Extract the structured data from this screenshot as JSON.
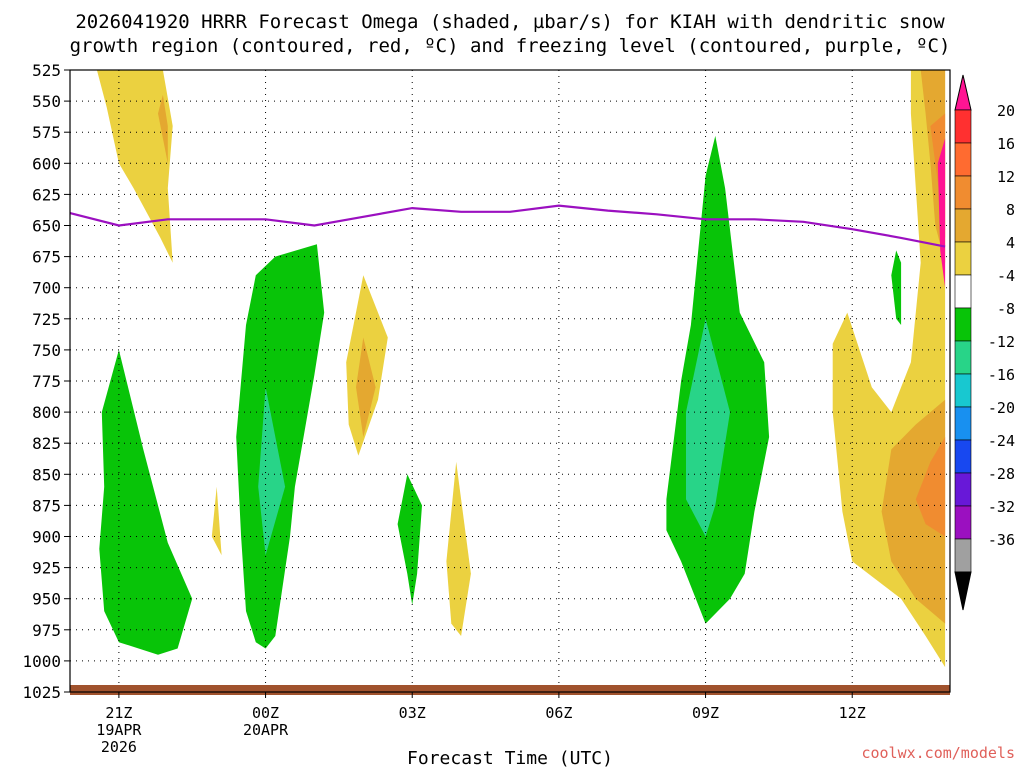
{
  "chart_data": {
    "type": "heatmap",
    "title_line1": "2026041920 HRRR Forecast Omega (shaded, µbar/s) for KIAH with dendritic snow",
    "title_line2": "growth region (contoured, red, ºC) and freezing level (contoured, purple, ºC)",
    "xlabel": "Forecast Time (UTC)",
    "ylabel": "",
    "y_ticks": [
      "525",
      "550",
      "575",
      "600",
      "625",
      "650",
      "675",
      "700",
      "725",
      "750",
      "775",
      "800",
      "825",
      "850",
      "875",
      "900",
      "925",
      "950",
      "975",
      "1000",
      "1025"
    ],
    "y_values": [
      525,
      550,
      575,
      600,
      625,
      650,
      675,
      700,
      725,
      750,
      775,
      800,
      825,
      850,
      875,
      900,
      925,
      950,
      975,
      1000,
      1025
    ],
    "ylim": [
      525,
      1025
    ],
    "xlim": [
      -1,
      17
    ],
    "x_ticks": [
      {
        "x": 0,
        "line1": "21Z",
        "line2": "19APR",
        "line3": "2026"
      },
      {
        "x": 3,
        "line1": "00Z",
        "line2": "20APR",
        "line3": ""
      },
      {
        "x": 6,
        "line1": "03Z",
        "line2": "",
        "line3": ""
      },
      {
        "x": 9,
        "line1": "06Z",
        "line2": "",
        "line3": ""
      },
      {
        "x": 12,
        "line1": "09Z",
        "line2": "",
        "line3": ""
      },
      {
        "x": 15,
        "line1": "12Z",
        "line2": "",
        "line3": ""
      }
    ],
    "colorbar": {
      "labels": [
        "20",
        "16",
        "12",
        "8",
        "4",
        "-4",
        "-8",
        "-12",
        "-16",
        "-20",
        "-24",
        "-28",
        "-32",
        "-36"
      ],
      "colors": [
        "#ff1493",
        "#ff3030",
        "#ff6b30",
        "#f08c30",
        "#e4a830",
        "#ebd140",
        "#ffffff",
        "#08c408",
        "#28d488",
        "#18c8d0",
        "#1890f0",
        "#1848f0",
        "#6818d8",
        "#9b10c0",
        "#a0a0a0",
        "#000000"
      ]
    },
    "freezing_level": {
      "name": "freezing level (0 ºC)",
      "color": "#9b10c0",
      "x": [
        -1,
        0,
        1,
        2,
        3,
        4,
        5,
        6,
        7,
        8,
        9,
        10,
        11,
        12,
        13,
        14,
        15,
        16,
        16.9
      ],
      "y": [
        640,
        650,
        645,
        645,
        645,
        650,
        643,
        636,
        639,
        639,
        634,
        638,
        641,
        645,
        645,
        647,
        653,
        660,
        667
      ]
    },
    "omega_regions": [
      {
        "name": "ascent-21z-lower",
        "level": -4,
        "color": "#08c408",
        "points": [
          [
            -0.4,
            910
          ],
          [
            -0.3,
            860
          ],
          [
            -0.35,
            800
          ],
          [
            0,
            750
          ],
          [
            0.5,
            830
          ],
          [
            1,
            905
          ],
          [
            1.5,
            950
          ],
          [
            1.2,
            990
          ],
          [
            0.8,
            995
          ],
          [
            0,
            985
          ],
          [
            -0.3,
            960
          ]
        ]
      },
      {
        "name": "ascent-00z-mid",
        "level": -4,
        "color": "#08c408",
        "points": [
          [
            2.5,
            900
          ],
          [
            2.4,
            820
          ],
          [
            2.6,
            730
          ],
          [
            2.8,
            690
          ],
          [
            3.2,
            675
          ],
          [
            4.05,
            665
          ],
          [
            4.2,
            720
          ],
          [
            4,
            770
          ],
          [
            3.6,
            860
          ],
          [
            3.5,
            900
          ],
          [
            3.2,
            980
          ],
          [
            3,
            990
          ],
          [
            2.8,
            985
          ],
          [
            2.6,
            960
          ]
        ]
      },
      {
        "name": "ascent-00z-core",
        "level": -8,
        "color": "#28d488",
        "points": [
          [
            2.85,
            860
          ],
          [
            3,
            780
          ],
          [
            3.4,
            860
          ],
          [
            3,
            915
          ]
        ]
      },
      {
        "name": "ascent-03z",
        "level": -4,
        "color": "#08c408",
        "points": [
          [
            5.7,
            890
          ],
          [
            5.9,
            850
          ],
          [
            6.2,
            875
          ],
          [
            6.1,
            930
          ],
          [
            6,
            955
          ],
          [
            5.9,
            930
          ]
        ]
      },
      {
        "name": "ascent-09z",
        "level": -4,
        "color": "#08c408",
        "points": [
          [
            11.2,
            870
          ],
          [
            11.5,
            775
          ],
          [
            11.7,
            730
          ],
          [
            12,
            610
          ],
          [
            12.2,
            578
          ],
          [
            12.4,
            620
          ],
          [
            12.7,
            720
          ],
          [
            13.2,
            760
          ],
          [
            13.3,
            820
          ],
          [
            13,
            880
          ],
          [
            12.8,
            930
          ],
          [
            12.5,
            950
          ],
          [
            12,
            970
          ],
          [
            11.8,
            950
          ],
          [
            11.5,
            920
          ],
          [
            11.2,
            895
          ]
        ]
      },
      {
        "name": "ascent-09z-core",
        "level": -8,
        "color": "#28d488",
        "points": [
          [
            11.6,
            800
          ],
          [
            12,
            725
          ],
          [
            12.5,
            800
          ],
          [
            12.2,
            875
          ],
          [
            12,
            900
          ],
          [
            11.6,
            870
          ]
        ]
      },
      {
        "name": "ascent-14z",
        "level": -4,
        "color": "#08c408",
        "points": [
          [
            15.8,
            690
          ],
          [
            15.9,
            670
          ],
          [
            16,
            680
          ],
          [
            16,
            730
          ],
          [
            15.9,
            725
          ]
        ]
      },
      {
        "name": "descent-21z-upper",
        "level": 4,
        "color": "#ebd140",
        "points": [
          [
            -0.45,
            525
          ],
          [
            0.9,
            525
          ],
          [
            1.1,
            570
          ],
          [
            1,
            620
          ],
          [
            1.1,
            680
          ],
          [
            0.85,
            660
          ],
          [
            0.3,
            620
          ],
          [
            0,
            600
          ],
          [
            -0.25,
            555
          ]
        ]
      },
      {
        "name": "descent-21z-upper-core",
        "level": 8,
        "color": "#e4a830",
        "points": [
          [
            0.9,
            545
          ],
          [
            1,
            570
          ],
          [
            1,
            600
          ],
          [
            0.8,
            560
          ]
        ]
      },
      {
        "name": "descent-22z-small",
        "level": 4,
        "color": "#ebd140",
        "points": [
          [
            1.9,
            900
          ],
          [
            2,
            860
          ],
          [
            2.1,
            915
          ]
        ]
      },
      {
        "name": "descent-02z",
        "level": 4,
        "color": "#ebd140",
        "points": [
          [
            4.65,
            760
          ],
          [
            5,
            690
          ],
          [
            5.5,
            740
          ],
          [
            5.3,
            790
          ],
          [
            4.9,
            835
          ],
          [
            4.7,
            810
          ]
        ]
      },
      {
        "name": "descent-02z-core",
        "level": 8,
        "color": "#e4a830",
        "points": [
          [
            4.85,
            780
          ],
          [
            5,
            740
          ],
          [
            5.25,
            780
          ],
          [
            5,
            820
          ]
        ]
      },
      {
        "name": "descent-04z",
        "level": 4,
        "color": "#ebd140",
        "points": [
          [
            6.7,
            920
          ],
          [
            6.9,
            840
          ],
          [
            7.2,
            930
          ],
          [
            7,
            980
          ],
          [
            6.8,
            970
          ]
        ]
      },
      {
        "name": "descent-13z-lower",
        "level": 4,
        "color": "#ebd140",
        "points": [
          [
            14.6,
            745
          ],
          [
            14.9,
            720
          ],
          [
            15.4,
            780
          ],
          [
            15.8,
            800
          ],
          [
            16.2,
            760
          ],
          [
            16.4,
            680
          ],
          [
            16.3,
            620
          ],
          [
            16.2,
            560
          ],
          [
            16.2,
            525
          ],
          [
            16.8,
            525
          ],
          [
            16.9,
            525
          ],
          [
            16.9,
            1005
          ],
          [
            16.5,
            980
          ],
          [
            16,
            950
          ],
          [
            15,
            920
          ],
          [
            14.8,
            880
          ],
          [
            14.6,
            800
          ]
        ]
      },
      {
        "name": "descent-13z-core",
        "level": 8,
        "color": "#e4a830",
        "points": [
          [
            16.4,
            525
          ],
          [
            16.8,
            525
          ],
          [
            16.9,
            525
          ],
          [
            16.9,
            680
          ],
          [
            16.7,
            650
          ],
          [
            16.6,
            600
          ],
          [
            16.5,
            560
          ]
        ]
      },
      {
        "name": "descent-13z-lower-core",
        "level": 8,
        "color": "#e4a830",
        "points": [
          [
            15.6,
            880
          ],
          [
            15.8,
            830
          ],
          [
            16.3,
            810
          ],
          [
            16.9,
            790
          ],
          [
            16.9,
            970
          ],
          [
            16.3,
            950
          ],
          [
            15.8,
            920
          ]
        ]
      },
      {
        "name": "descent-14z-upper-core",
        "level": 12,
        "color": "#f08c30",
        "points": [
          [
            16.6,
            570
          ],
          [
            16.9,
            560
          ],
          [
            16.9,
            660
          ],
          [
            16.8,
            630
          ]
        ]
      },
      {
        "name": "descent-14z-lower-core",
        "level": 12,
        "color": "#f08c30",
        "points": [
          [
            16.3,
            870
          ],
          [
            16.6,
            840
          ],
          [
            16.9,
            820
          ],
          [
            16.9,
            900
          ],
          [
            16.5,
            890
          ]
        ]
      },
      {
        "name": "descent-15z-max",
        "level": 16,
        "color": "#ff1493",
        "points": [
          [
            16.75,
            600
          ],
          [
            16.9,
            580
          ],
          [
            16.9,
            700
          ],
          [
            16.8,
            670
          ]
        ]
      }
    ]
  },
  "credit": "coolwx.com/models"
}
